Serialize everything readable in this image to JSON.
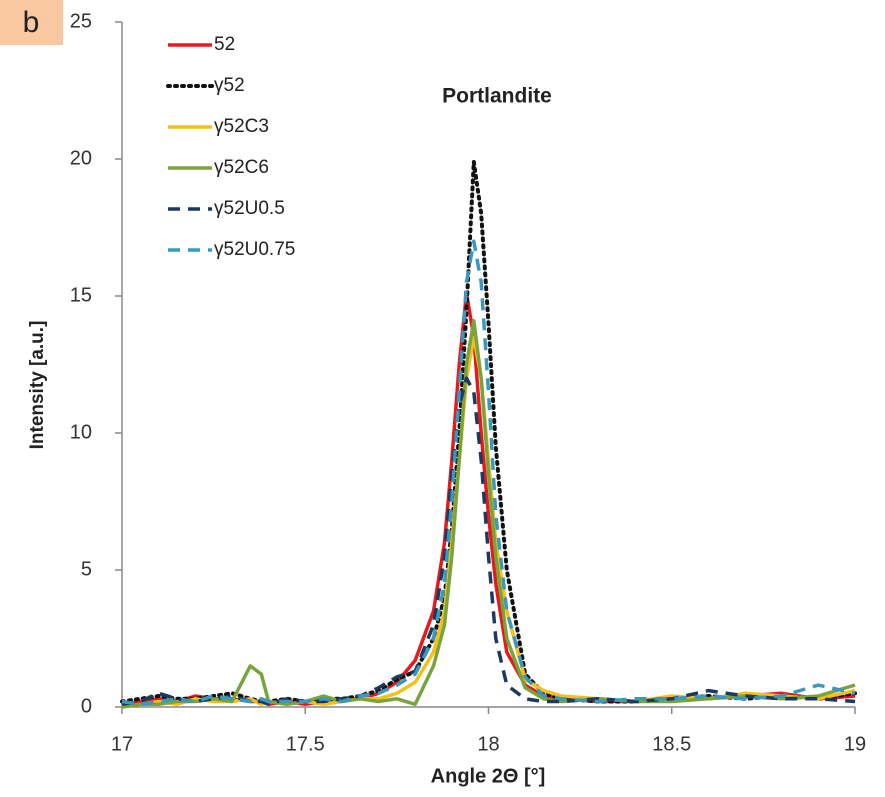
{
  "chart_data": {
    "type": "line",
    "panel_label": "b",
    "title": "Portlandite",
    "x_label": "Angle 2Θ [°]",
    "y_label": "Intensity [a.u.]",
    "xlim": [
      17,
      19
    ],
    "xticks": [
      17,
      17.5,
      18,
      18.5,
      19
    ],
    "ylim": [
      0,
      25
    ],
    "yticks": [
      0,
      5,
      10,
      15,
      20,
      25
    ],
    "grid": false,
    "legend": "upper left",
    "x": [
      17,
      17.05,
      17.1,
      17.15,
      17.2,
      17.25,
      17.3,
      17.35,
      17.38,
      17.4,
      17.45,
      17.5,
      17.55,
      17.6,
      17.65,
      17.7,
      17.75,
      17.8,
      17.85,
      17.88,
      17.9,
      17.92,
      17.94,
      17.96,
      17.98,
      18,
      18.02,
      18.05,
      18.1,
      18.15,
      18.2,
      18.3,
      18.4,
      18.5,
      18.6,
      18.7,
      18.8,
      18.9,
      19
    ],
    "series": [
      {
        "name": "52",
        "color": "#e8191c",
        "dash": "solid",
        "values": [
          0.1,
          0.2,
          0.3,
          0.2,
          0.4,
          0.3,
          0.3,
          0.2,
          0.2,
          0.1,
          0.2,
          0.1,
          0.2,
          0.3,
          0.3,
          0.5,
          0.9,
          1.7,
          3.5,
          6,
          9,
          12.5,
          15.1,
          13.5,
          10,
          7,
          4.5,
          2,
          0.8,
          0.4,
          0.3,
          0.2,
          0.2,
          0.3,
          0.3,
          0.4,
          0.5,
          0.3,
          0.4
        ]
      },
      {
        "name": "γ52",
        "color": "#111111",
        "dash": "dotted",
        "values": [
          0.2,
          0.3,
          0.4,
          0.3,
          0.3,
          0.4,
          0.5,
          0.3,
          0.2,
          0.2,
          0.3,
          0.2,
          0.3,
          0.3,
          0.4,
          0.6,
          1,
          1.3,
          2.5,
          4,
          6.5,
          10,
          14.5,
          19.9,
          18,
          14,
          9.5,
          5,
          1.2,
          0.5,
          0.3,
          0.2,
          0.2,
          0.3,
          0.4,
          0.3,
          0.4,
          0.3,
          0.5
        ]
      },
      {
        "name": "γ52C3",
        "color": "#f7bf1a",
        "dash": "solid",
        "values": [
          0,
          0.1,
          0.2,
          0.1,
          0.3,
          0.2,
          0.2,
          0.3,
          0.1,
          0.2,
          0.1,
          0.2,
          0.1,
          0.2,
          0.3,
          0.3,
          0.5,
          0.9,
          2,
          3.5,
          6,
          9,
          12,
          13.5,
          12,
          9,
          6,
          3.5,
          1,
          0.6,
          0.4,
          0.3,
          0.2,
          0.4,
          0.3,
          0.5,
          0.4,
          0.3,
          0.6
        ]
      },
      {
        "name": "γ52C6",
        "color": "#7aa33c",
        "dash": "solid",
        "values": [
          0,
          0.1,
          0.1,
          0.2,
          0.2,
          0.3,
          0.2,
          1.5,
          1.2,
          0.2,
          0.1,
          0.2,
          0.4,
          0.2,
          0.3,
          0.2,
          0.3,
          0.1,
          1.5,
          3,
          5.5,
          9,
          12.5,
          14.1,
          12,
          8.5,
          5.5,
          2.5,
          0.7,
          0.3,
          0.2,
          0.3,
          0.2,
          0.2,
          0.3,
          0.4,
          0.3,
          0.4,
          0.8
        ]
      },
      {
        "name": "γ52U0.5",
        "color": "#1b3a5e",
        "dash": "dashed",
        "values": [
          0.1,
          0.2,
          0.5,
          0.3,
          0.2,
          0.3,
          0.4,
          0.2,
          0.2,
          0.1,
          0.3,
          0.2,
          0.2,
          0.3,
          0.4,
          0.7,
          1.1,
          1.3,
          3,
          5.5,
          8.5,
          11,
          12,
          11.5,
          9,
          5.5,
          2.5,
          0.8,
          0.3,
          0.2,
          0.2,
          0.3,
          0.2,
          0.3,
          0.6,
          0.4,
          0.3,
          0.3,
          0.2
        ]
      },
      {
        "name": "γ52U0.75",
        "color": "#3a98bf",
        "dash": "dashed",
        "values": [
          0.2,
          0.1,
          0.2,
          0.3,
          0.2,
          0.4,
          0.3,
          0.2,
          0.3,
          0.2,
          0.2,
          0.2,
          0.3,
          0.2,
          0.4,
          0.5,
          0.8,
          1.2,
          2.5,
          4.5,
          7.5,
          11.5,
          15.5,
          17,
          15.5,
          11.5,
          7,
          3.5,
          1.1,
          0.4,
          0.3,
          0.2,
          0.3,
          0.3,
          0.4,
          0.3,
          0.4,
          0.8,
          0.5
        ]
      }
    ]
  }
}
